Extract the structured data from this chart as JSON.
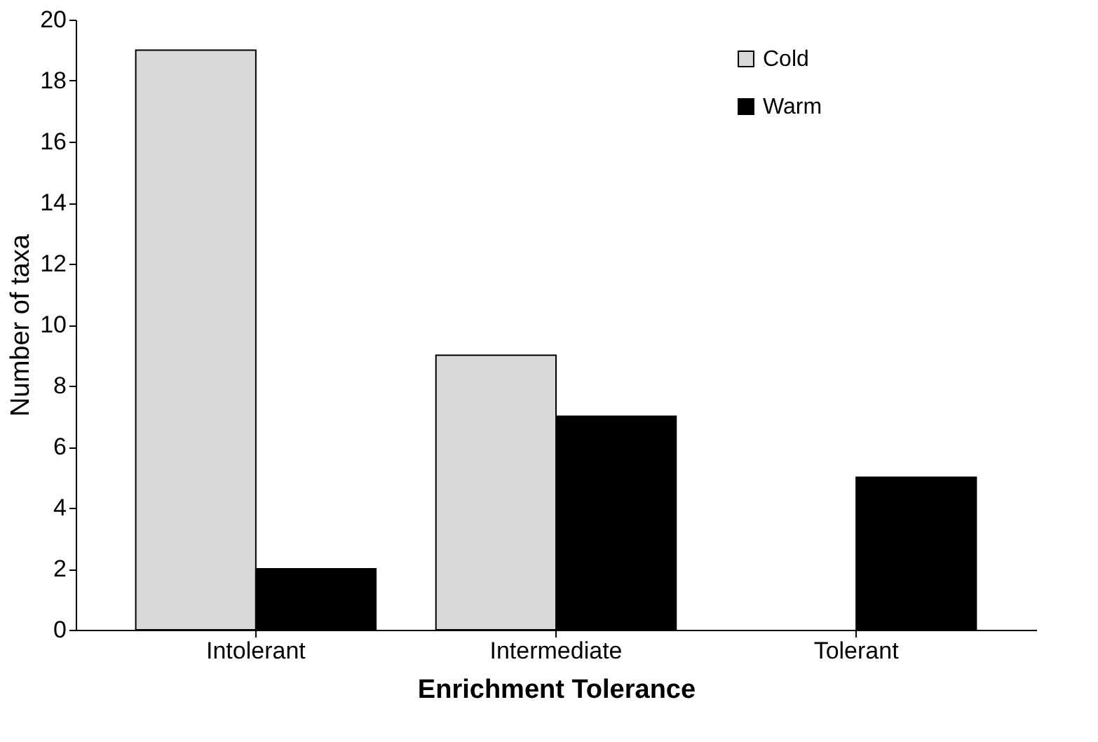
{
  "chart_data": {
    "type": "bar",
    "xlabel": "Enrichment Tolerance",
    "ylabel": "Number  of taxa",
    "categories": [
      "Intolerant",
      "Intermediate",
      "Tolerant"
    ],
    "series": [
      {
        "name": "Cold",
        "color": "#d9d9d9",
        "values": [
          19,
          9,
          null
        ]
      },
      {
        "name": "Warm",
        "color": "#000000",
        "values": [
          2,
          7,
          5
        ]
      }
    ],
    "ylim": [
      0,
      20
    ],
    "yticks": [
      0,
      2,
      4,
      6,
      8,
      10,
      12,
      14,
      16,
      18,
      20
    ],
    "grid": false,
    "legend": "top right"
  }
}
